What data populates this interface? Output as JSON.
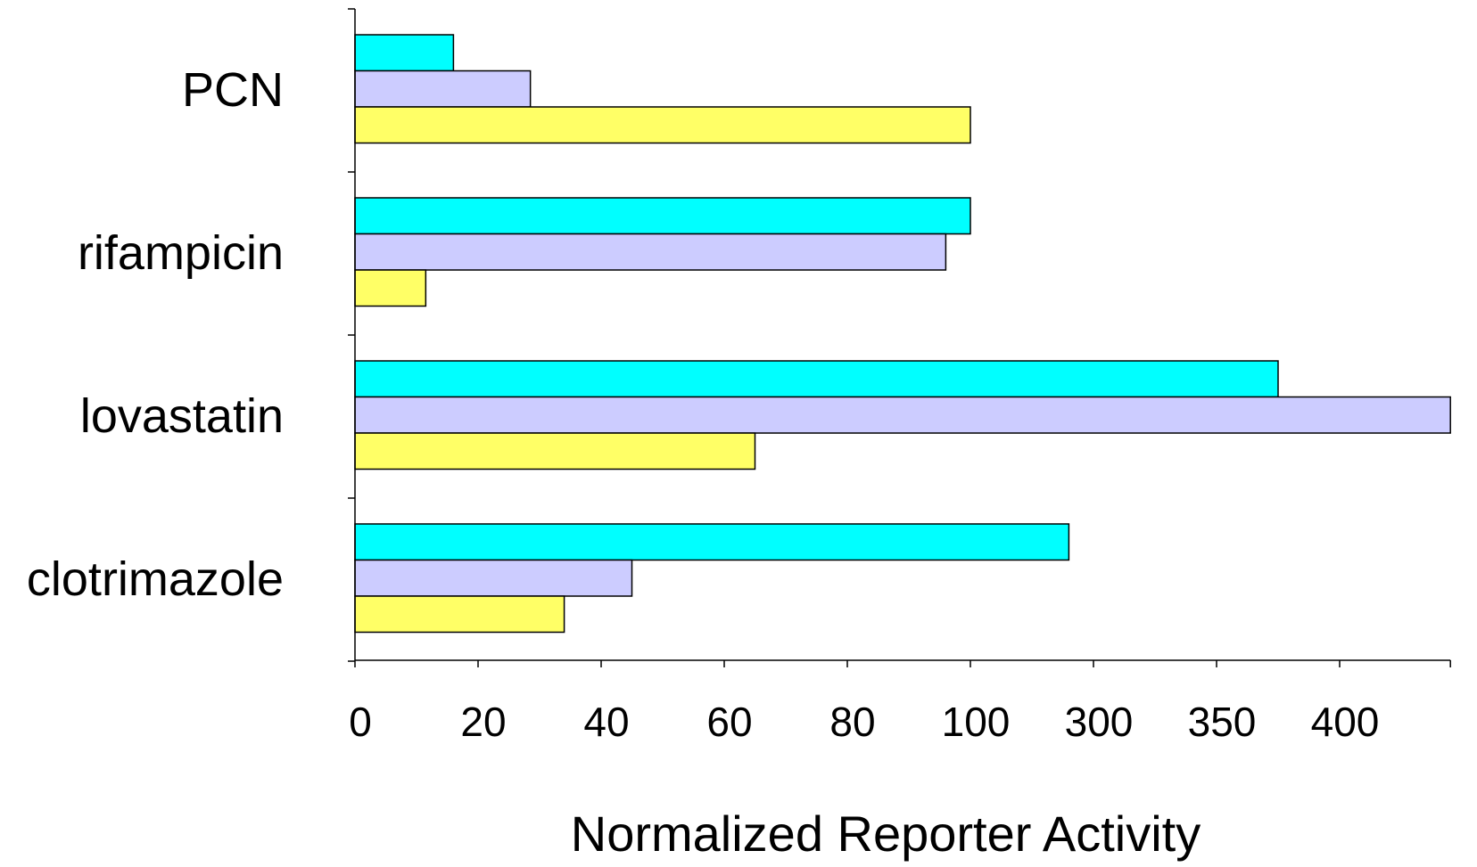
{
  "chart_data": {
    "type": "bar",
    "orientation": "horizontal",
    "title": "",
    "xlabel": "Normalized Reporter Activity",
    "ylabel": "",
    "categories": [
      "PCN",
      "rifampicin",
      "lovastatin",
      "clotrimazole"
    ],
    "x_ticks": [
      "0",
      "20",
      "40",
      "60",
      "80",
      "100",
      "300",
      "350",
      "400"
    ],
    "axis_break": {
      "linear_max": 100,
      "upper_start": 250,
      "tick_step_upper": 50
    },
    "xlim": [
      0,
      445
    ],
    "grid": false,
    "legend": "none",
    "series": [
      {
        "values": [
          16,
          100,
          375,
          290
        ],
        "color": "#00FFFF"
      },
      {
        "values": [
          28.5,
          96,
          445,
          45
        ],
        "color": "#CCCCFF"
      },
      {
        "values": [
          100,
          11.5,
          65,
          34
        ],
        "color": "#FFFF66"
      }
    ]
  }
}
